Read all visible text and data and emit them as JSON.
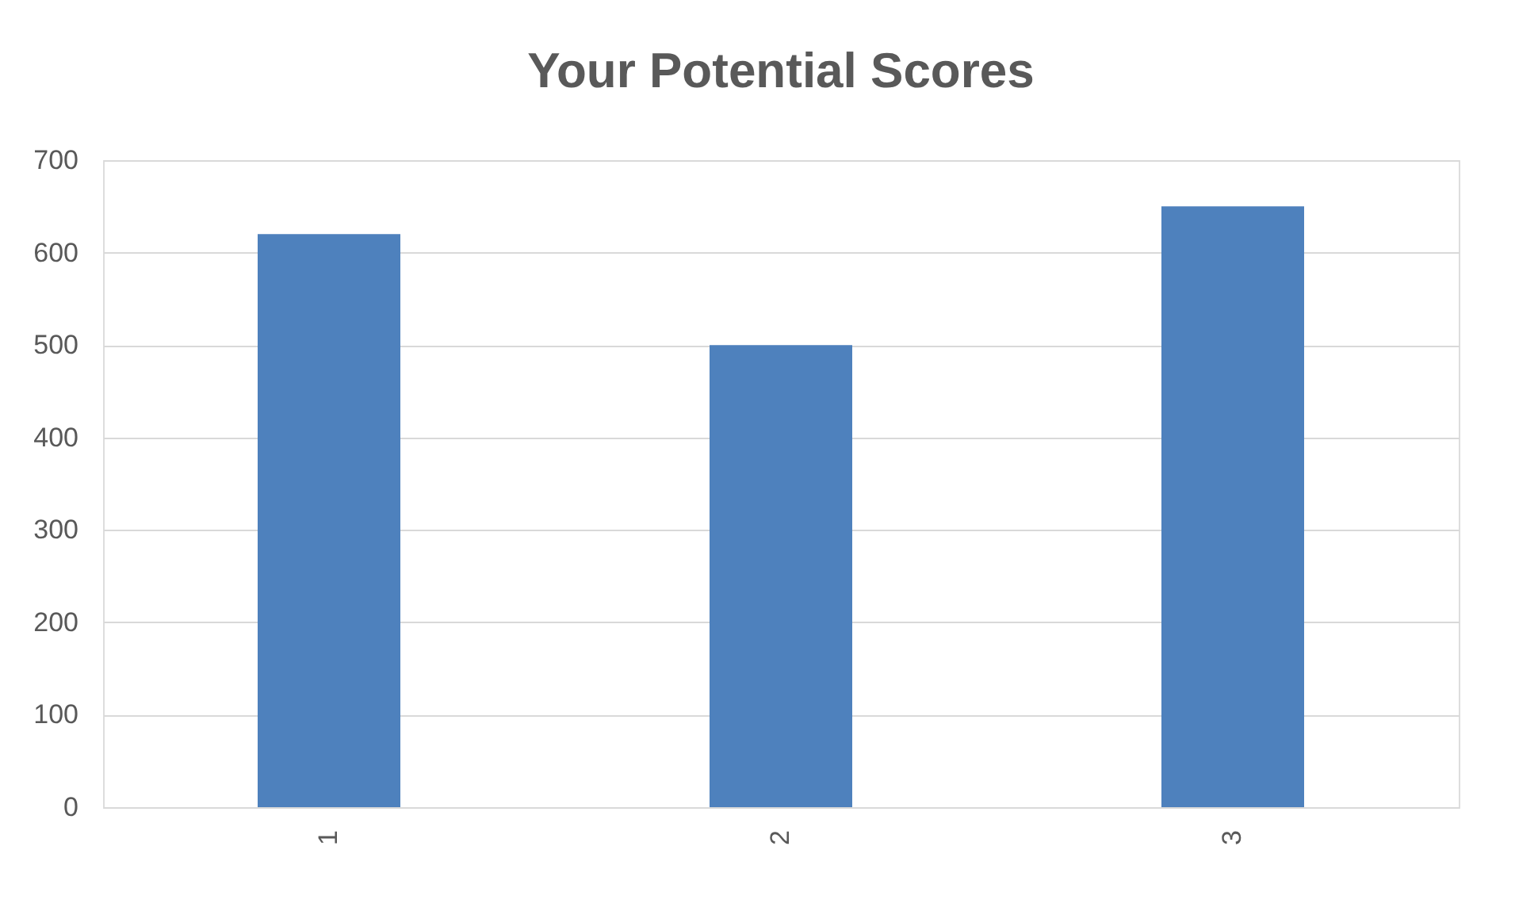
{
  "chart_data": {
    "type": "bar",
    "title": "Your Potential Scores",
    "categories": [
      "1",
      "2",
      "3"
    ],
    "values": [
      620,
      500,
      650
    ],
    "color": "#4e81bd",
    "ylim": [
      0,
      700
    ],
    "yticks": [
      0,
      100,
      200,
      300,
      400,
      500,
      600,
      700
    ],
    "grid": "y"
  }
}
